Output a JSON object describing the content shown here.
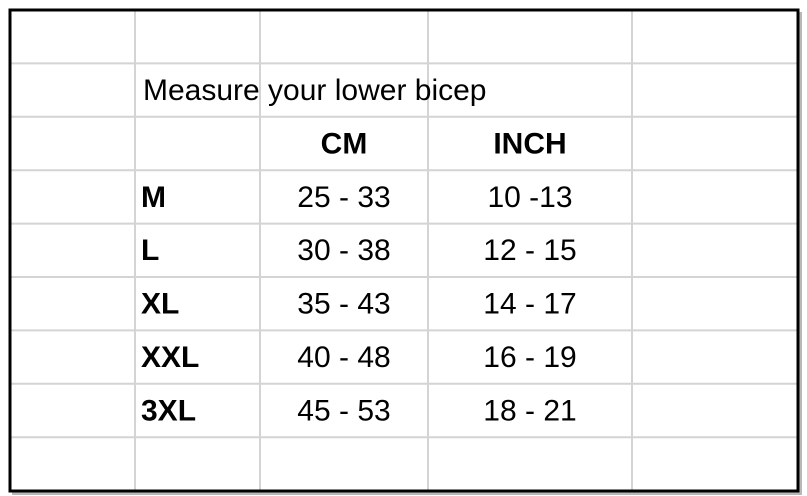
{
  "table": {
    "title": "Measure your lower bicep",
    "header": [
      "CM",
      "INCH"
    ],
    "rows": [
      [
        "M",
        "25 - 33",
        "10 -13"
      ],
      [
        "L",
        "30 - 38",
        "12 - 15"
      ],
      [
        "XL",
        "35 - 43",
        "14 - 17"
      ],
      [
        "XXL",
        "40 - 48",
        "16 - 19"
      ],
      [
        "3XL",
        "45 - 53",
        "18 - 21"
      ]
    ]
  }
}
